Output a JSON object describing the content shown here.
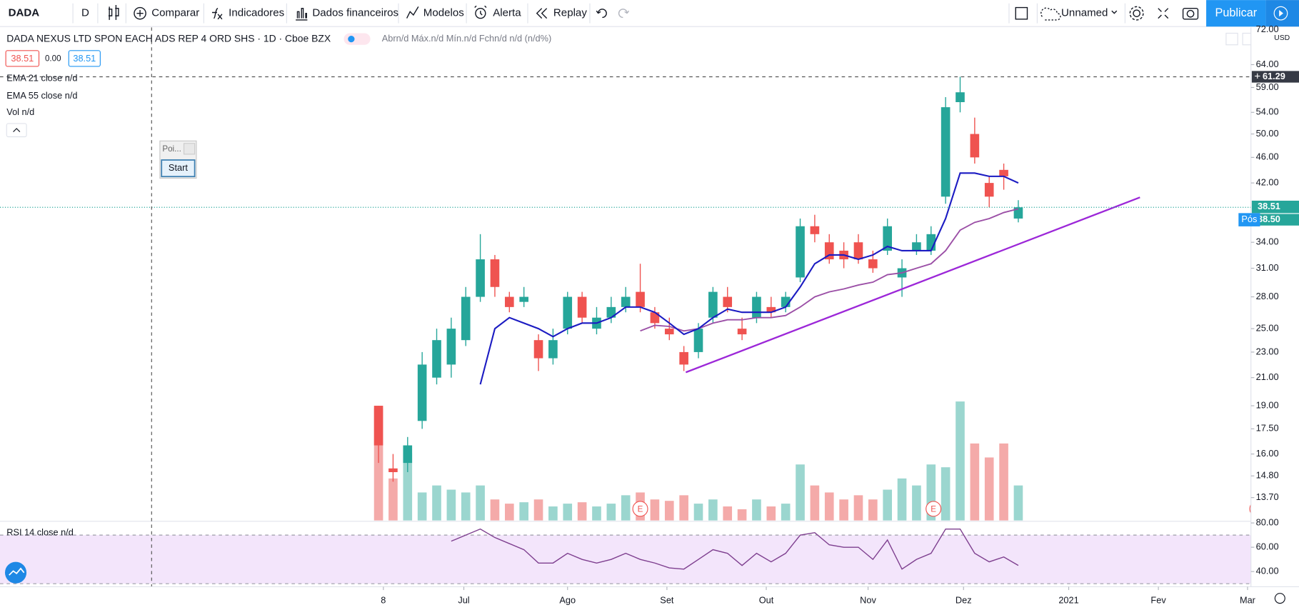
{
  "toolbar": {
    "symbol": "DADA",
    "interval": "D",
    "items": [
      "Comparar",
      "Indicadores",
      "Dados financeiros",
      "Modelos",
      "Alerta",
      "Replay"
    ],
    "layout": "Unnamed",
    "publish": "Publicar"
  },
  "legend": {
    "title": "DADA NEXUS LTD SPON EACH ADS REP 4 ORD SHS · 1D · Cboe BZX",
    "ohlc": "Abrn/d Máx.n/d Mín.n/d Fchn/d n/d (n/d%)",
    "bid": "38.51",
    "spread": "0.00",
    "ask": "38.51",
    "indicators": [
      "EMA 21 close  n/d",
      "EMA 55 close  n/d",
      "Vol  n/d"
    ],
    "rsi": "RSI 14 close  n/d"
  },
  "widget": {
    "title": "Poi...",
    "button": "Start"
  },
  "chart_data": {
    "type": "candlestick",
    "log": true,
    "grid": false,
    "currency": "USD",
    "x": [
      0,
      3,
      6,
      9,
      12,
      15,
      18,
      21,
      24,
      27,
      30,
      33,
      36,
      39,
      42,
      45,
      48,
      51,
      54,
      57,
      60,
      63,
      66,
      69,
      72,
      75,
      78,
      81,
      84,
      87,
      90,
      93,
      96,
      99,
      102,
      105,
      108,
      111,
      114,
      117,
      120,
      123,
      126,
      129,
      132
    ],
    "open": [
      19,
      15.2,
      15.5,
      18,
      21,
      22,
      24,
      28,
      32,
      28,
      27.5,
      24,
      22.5,
      25,
      28,
      25,
      26,
      27,
      28.5,
      26.5,
      25,
      23,
      23,
      26,
      28,
      25,
      26,
      27,
      27,
      30,
      36,
      34,
      33,
      34,
      32,
      33,
      30,
      33,
      33,
      40,
      56,
      50,
      42,
      44,
      37
    ],
    "high": [
      19,
      16,
      17,
      23,
      25,
      26,
      29,
      35,
      32.5,
      28.5,
      29,
      24.5,
      25,
      28.5,
      28.5,
      27,
      28,
      29,
      31.5,
      27,
      26,
      23.5,
      25.5,
      29,
      29,
      26,
      28.5,
      28,
      28.5,
      37,
      37.5,
      35,
      34,
      35,
      33,
      37,
      32,
      35,
      36,
      57,
      61.29,
      53,
      43,
      45,
      39.5
    ],
    "low": [
      15.5,
      14.5,
      15,
      17.5,
      20.5,
      21,
      23.5,
      27.5,
      28,
      26.5,
      27,
      21.5,
      22,
      24.5,
      25.5,
      24.5,
      25.5,
      26.5,
      26.5,
      25,
      24,
      21.5,
      22.5,
      25.5,
      26.5,
      24,
      25.5,
      26,
      26.5,
      29.5,
      34,
      31.5,
      31,
      31.5,
      30.5,
      32.5,
      28,
      32.5,
      32.5,
      39,
      54,
      45,
      38.5,
      41,
      36.5
    ],
    "close": [
      16.5,
      15,
      16.5,
      22,
      24,
      25,
      28,
      32,
      29,
      27,
      28,
      22.5,
      24,
      28,
      26,
      26,
      27,
      28,
      27,
      25.5,
      24.5,
      22,
      25,
      28.5,
      27,
      24.5,
      28,
      26.5,
      28,
      36,
      35,
      32,
      32,
      32,
      31,
      36,
      31,
      34,
      35,
      55,
      58,
      46,
      40,
      43,
      38.51
    ],
    "volume": [
      8,
      3,
      4.8,
      2,
      2.5,
      2.2,
      2,
      2.5,
      1.5,
      1.2,
      1.3,
      1.5,
      1,
      1.2,
      1.3,
      1,
      1.2,
      1.8,
      2,
      1.5,
      1.4,
      1.8,
      1.2,
      1.5,
      1,
      0.8,
      1.5,
      1,
      1.2,
      4,
      2.5,
      2,
      1.5,
      1.8,
      1.5,
      2.2,
      3,
      2.5,
      4,
      3.8,
      8.5,
      5.5,
      4.5,
      5.5,
      2.5
    ],
    "ema21": [
      null,
      null,
      null,
      null,
      null,
      null,
      null,
      20.5,
      25,
      26,
      25.5,
      25,
      24.3,
      25,
      25.5,
      25.5,
      26,
      27,
      27,
      26.5,
      25.5,
      24.5,
      25,
      26,
      26.8,
      26.5,
      26.5,
      26.5,
      27,
      29,
      31.5,
      32.5,
      32.5,
      32,
      32.5,
      33.5,
      33,
      33,
      33,
      37,
      43.5,
      43.5,
      43,
      43,
      42
    ],
    "ema55": [
      null,
      null,
      null,
      null,
      null,
      null,
      null,
      null,
      null,
      null,
      null,
      null,
      null,
      null,
      null,
      null,
      null,
      null,
      24.8,
      25.3,
      25.2,
      24.8,
      25,
      25.5,
      25.8,
      25.8,
      26,
      26,
      26.2,
      27,
      28,
      28.5,
      28.8,
      29.2,
      29.5,
      30.3,
      30.5,
      31,
      31.5,
      33,
      35.5,
      36.5,
      37,
      37.8,
      38.3
    ],
    "rsi": [
      null,
      null,
      null,
      null,
      null,
      65,
      70,
      75,
      68,
      63,
      58,
      47,
      47,
      55,
      50,
      47,
      50,
      55,
      50,
      47,
      43,
      42,
      50,
      58,
      55,
      45,
      55,
      48,
      55,
      70,
      72,
      62,
      60,
      60,
      50,
      66,
      42,
      50,
      55,
      75,
      75,
      55,
      48,
      52,
      45
    ],
    "colors": {
      "up": "#26a69a",
      "down": "#ef5350",
      "up_volume": "#9bd6cf",
      "down_volume": "#f4aaa9",
      "ema21": "#1b1bc2",
      "ema55": "#9b4fa6",
      "rsi": "#7e3f8f",
      "trendline": "#9c27d8"
    },
    "xlim": [
      -78.1,
      180
    ],
    "xticks": [
      {
        "value": 1,
        "label": "8"
      },
      {
        "value": 17.6,
        "label": "Jul"
      },
      {
        "value": 39,
        "label": "Ago"
      },
      {
        "value": 59.5,
        "label": "Set"
      },
      {
        "value": 80,
        "label": "Out"
      },
      {
        "value": 101,
        "label": "Nov"
      },
      {
        "value": 120.7,
        "label": "Dez"
      },
      {
        "value": 142.4,
        "label": "2021"
      },
      {
        "value": 160.9,
        "label": "Fev"
      },
      {
        "value": 179.3,
        "label": "Mar"
      }
    ],
    "ylim": [
      12.63,
      72
    ],
    "yticks": [
      {
        "value": 72,
        "label": "72.00"
      },
      {
        "value": 64,
        "label": "64.00"
      },
      {
        "value": 59,
        "label": "59.00"
      },
      {
        "value": 54,
        "label": "54.00"
      },
      {
        "value": 50,
        "label": "50.00"
      },
      {
        "value": 46,
        "label": "46.00"
      },
      {
        "value": 42,
        "label": "42.00"
      },
      {
        "value": 34,
        "label": "34.00"
      },
      {
        "value": 31,
        "label": "31.00"
      },
      {
        "value": 28,
        "label": "28.00"
      },
      {
        "value": 25,
        "label": "25.00"
      },
      {
        "value": 23,
        "label": "23.00"
      },
      {
        "value": 21,
        "label": "21.00"
      },
      {
        "value": 19,
        "label": "19.00"
      },
      {
        "value": 17.5,
        "label": "17.50"
      },
      {
        "value": 16,
        "label": "16.00"
      },
      {
        "value": 14.8,
        "label": "14.80"
      },
      {
        "value": 13.7,
        "label": "13.70"
      }
    ],
    "crosshair_price": 61.29,
    "last_price": 38.51,
    "extended_price": {
      "value": 38.5,
      "label": "38.50"
    },
    "extended_label": "Pós",
    "volume_lim": [
      0,
      13.5
    ],
    "rsi_lim": [
      27.5,
      80.7
    ],
    "rsi_ticks": [
      {
        "value": 80,
        "label": "80.00"
      },
      {
        "value": 60,
        "label": "60.00"
      },
      {
        "value": 40,
        "label": "40.00"
      }
    ],
    "rsi_band": [
      30,
      70
    ],
    "trendline": {
      "x": [
        63.4,
        157.1
      ],
      "y": [
        21.4,
        39.9
      ]
    },
    "earnings": {
      "x": [
        54,
        114.5,
        181.3
      ],
      "label": "E"
    }
  }
}
